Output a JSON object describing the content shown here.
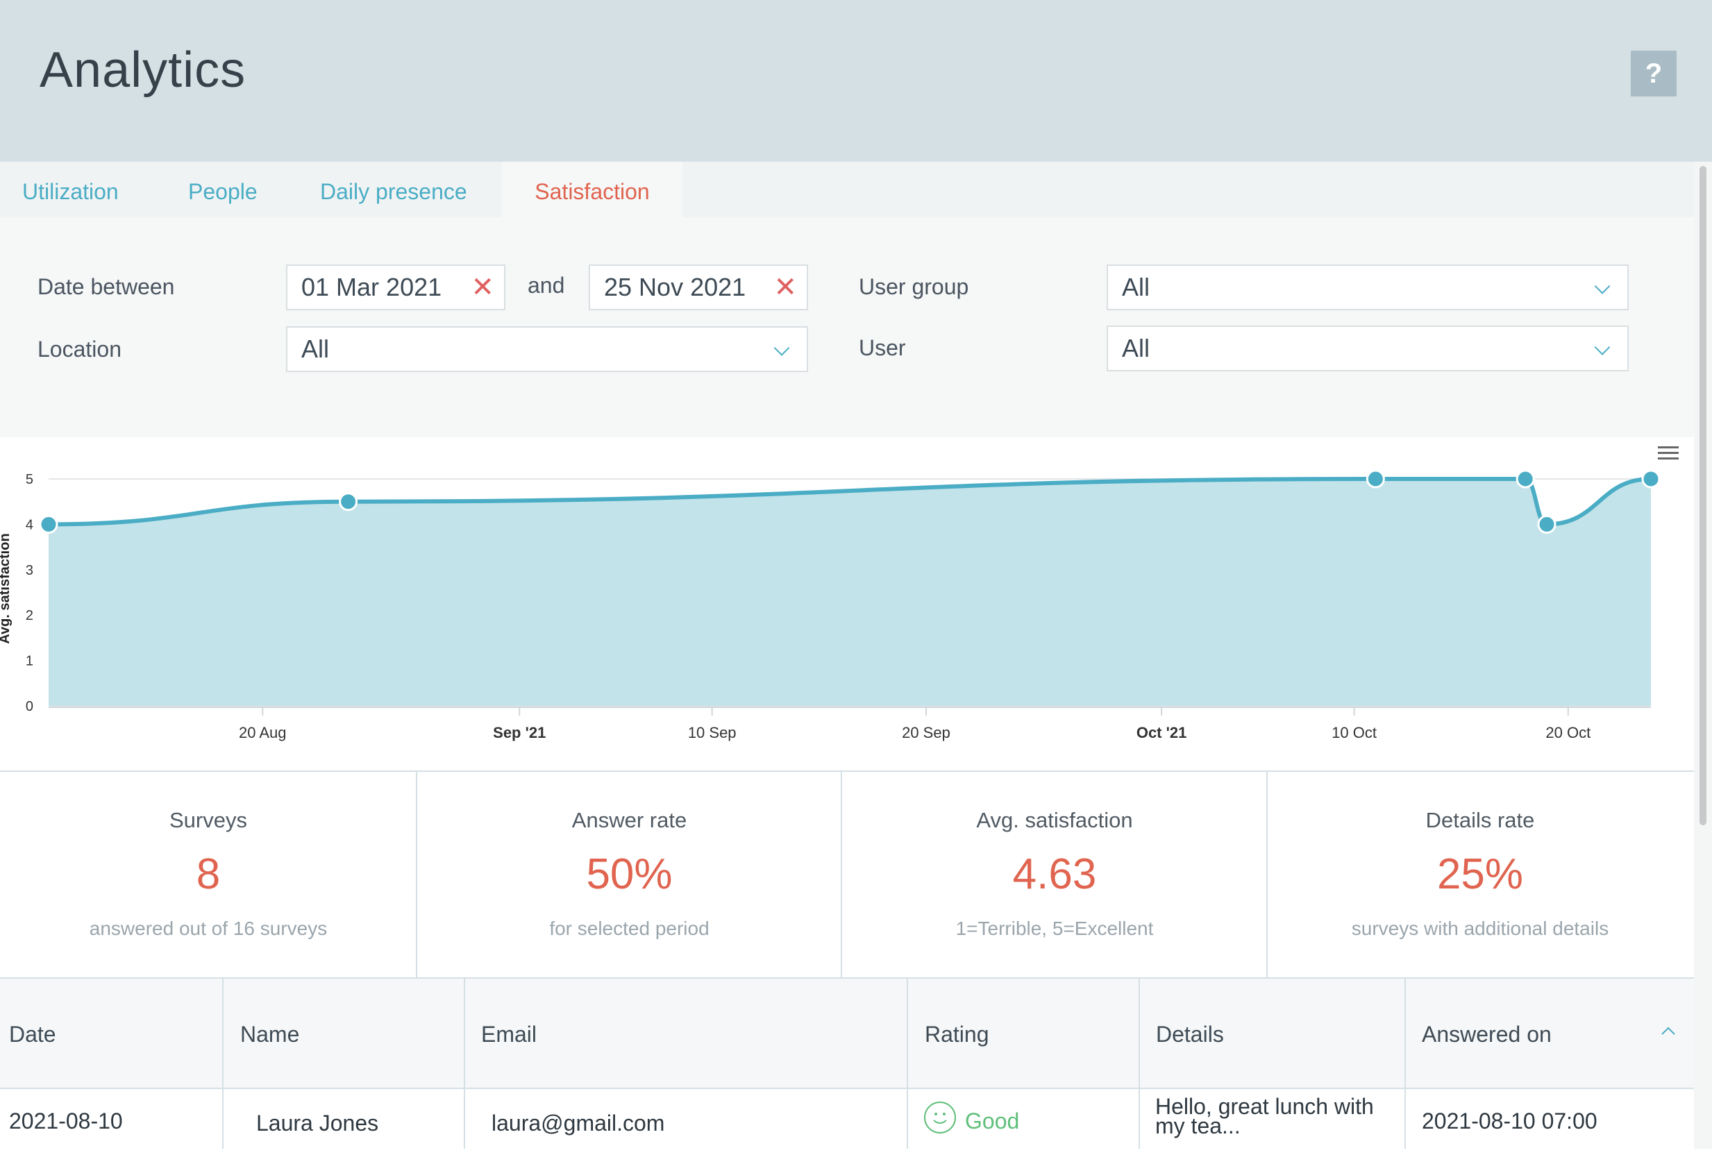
{
  "header": {
    "title": "Analytics",
    "help_label": "?"
  },
  "tabs": [
    {
      "label": "Utilization",
      "active": false
    },
    {
      "label": "People",
      "active": false
    },
    {
      "label": "Daily presence",
      "active": false
    },
    {
      "label": "Satisfaction",
      "active": true
    }
  ],
  "filters": {
    "date_between_label": "Date between",
    "date_from": "01 Mar 2021",
    "and_label": "and",
    "date_to": "25 Nov 2021",
    "location_label": "Location",
    "location_value": "All",
    "user_group_label": "User group",
    "user_group_value": "All",
    "user_label": "User",
    "user_value": "All"
  },
  "chart_data": {
    "type": "area",
    "ylabel": "Avg. satisfaction",
    "ylim": [
      0,
      5
    ],
    "yticks": [
      "0",
      "1",
      "2",
      "3",
      "4",
      "5"
    ],
    "x_start": "2021-08-10",
    "x_end": "2021-10-23",
    "xticks": [
      {
        "date": "2021-08-20",
        "label": "20 Aug",
        "bold": false
      },
      {
        "date": "2021-09-01",
        "label": "Sep '21",
        "bold": true
      },
      {
        "date": "2021-09-10",
        "label": "10 Sep",
        "bold": false
      },
      {
        "date": "2021-09-20",
        "label": "20 Sep",
        "bold": false
      },
      {
        "date": "2021-10-01",
        "label": "Oct '21",
        "bold": true
      },
      {
        "date": "2021-10-10",
        "label": "10 Oct",
        "bold": false
      },
      {
        "date": "2021-10-20",
        "label": "20 Oct",
        "bold": false
      }
    ],
    "series": [
      {
        "points": [
          {
            "x": "2021-08-10",
            "y": 4
          },
          {
            "x": "2021-08-24",
            "y": 4.5
          },
          {
            "x": "2021-10-11",
            "y": 5
          },
          {
            "x": "2021-10-18",
            "y": 5
          },
          {
            "x": "2021-10-19",
            "y": 4
          },
          {
            "x": "2021-10-25",
            "y": 5
          }
        ]
      }
    ],
    "colors": {
      "line": "#4aadc5",
      "fill": "#c3e3ea"
    },
    "grid": true,
    "legend": false
  },
  "stats": [
    {
      "title": "Surveys",
      "value": "8",
      "sub": "answered out of 16 surveys"
    },
    {
      "title": "Answer rate",
      "value": "50%",
      "sub": "for selected period"
    },
    {
      "title": "Avg. satisfaction",
      "value": "4.63",
      "sub": "1=Terrible, 5=Excellent"
    },
    {
      "title": "Details rate",
      "value": "25%",
      "sub": "surveys with additional details"
    }
  ],
  "table": {
    "columns": [
      "Date",
      "Name",
      "Email",
      "Rating",
      "Details",
      "Answered on"
    ],
    "rows": [
      {
        "date": "2021-08-10",
        "name": "Laura Jones",
        "email": "laura@gmail.com",
        "rating": "Good",
        "details_line1": "Hello, great lunch with",
        "details_line2": "my tea...",
        "answered_on": "2021-08-10 07:00"
      }
    ]
  },
  "colors": {
    "accent": "#4aadc5",
    "highlight": "#e0644f",
    "good": "#5fbf7a",
    "header_bg": "#d5e0e5"
  },
  "icons": {
    "help": "question-icon",
    "clear": "close-icon",
    "dropdown": "chevron-down-icon",
    "menu": "hamburger-menu-icon",
    "sort": "chevron-up-icon",
    "rating": "smiley-face-icon"
  }
}
